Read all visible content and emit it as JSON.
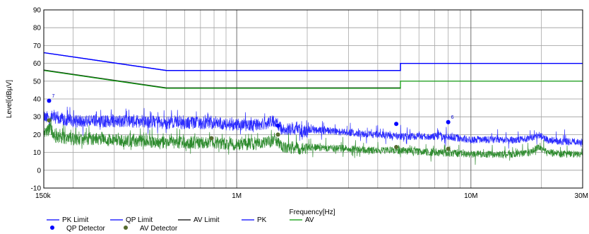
{
  "chart_data": {
    "type": "line",
    "x_scale": "log",
    "xlabel": "Frequency[Hz]",
    "ylabel": "Level[dBµV]",
    "xlim": [
      150000,
      30000000
    ],
    "ylim": [
      -10,
      90
    ],
    "grid": true,
    "legend_position": "bottom",
    "x_tick_labels": [
      {
        "value": 150000,
        "label": "150k"
      },
      {
        "value": 1000000,
        "label": "1M"
      },
      {
        "value": 10000000,
        "label": "10M"
      },
      {
        "value": 30000000,
        "label": "30M"
      }
    ],
    "y_ticks": [
      -10,
      0,
      10,
      20,
      30,
      40,
      50,
      60,
      70,
      80,
      90
    ],
    "limit_lines": [
      {
        "name": "PK Limit",
        "color": "#0000ff",
        "points": [
          [
            150000,
            66
          ],
          [
            500000,
            56
          ],
          [
            5000000,
            56
          ],
          [
            5000000,
            60
          ],
          [
            30000000,
            60
          ]
        ]
      },
      {
        "name": "QP Limit",
        "color": "#0000ff",
        "points": [
          [
            150000,
            66
          ],
          [
            500000,
            56
          ],
          [
            5000000,
            56
          ],
          [
            5000000,
            60
          ],
          [
            30000000,
            60
          ]
        ]
      },
      {
        "name": "AV Limit",
        "color": "#009900",
        "points": [
          [
            150000,
            56
          ],
          [
            500000,
            46
          ],
          [
            5000000,
            46
          ],
          [
            5000000,
            50
          ],
          [
            30000000,
            50
          ]
        ]
      }
    ],
    "series": [
      {
        "name": "PK",
        "color": "#2b2bff",
        "envelope": [
          [
            150000,
            34
          ],
          [
            170000,
            33
          ],
          [
            200000,
            31
          ],
          [
            250000,
            31
          ],
          [
            300000,
            31
          ],
          [
            400000,
            31
          ],
          [
            500000,
            30
          ],
          [
            600000,
            30
          ],
          [
            700000,
            30
          ],
          [
            800000,
            30
          ],
          [
            1000000,
            29
          ],
          [
            1200000,
            29
          ],
          [
            1350000,
            30
          ],
          [
            1450000,
            31
          ],
          [
            1550000,
            27
          ],
          [
            1800000,
            26
          ],
          [
            2000000,
            25
          ],
          [
            2500000,
            24
          ],
          [
            3000000,
            23
          ],
          [
            4000000,
            22
          ],
          [
            5000000,
            21
          ],
          [
            6000000,
            21
          ],
          [
            7000000,
            21
          ],
          [
            8000000,
            21
          ],
          [
            10000000,
            19
          ],
          [
            12000000,
            19
          ],
          [
            15000000,
            19
          ],
          [
            18000000,
            20
          ],
          [
            19500000,
            22
          ],
          [
            21000000,
            19
          ],
          [
            25000000,
            18
          ],
          [
            30000000,
            18
          ]
        ]
      },
      {
        "name": "AV",
        "color": "#2e8b2e",
        "envelope": [
          [
            150000,
            24
          ],
          [
            160000,
            27
          ],
          [
            170000,
            22
          ],
          [
            200000,
            21
          ],
          [
            250000,
            21
          ],
          [
            300000,
            20
          ],
          [
            400000,
            20
          ],
          [
            500000,
            19
          ],
          [
            600000,
            19
          ],
          [
            700000,
            19
          ],
          [
            800000,
            19
          ],
          [
            1000000,
            18
          ],
          [
            1200000,
            18
          ],
          [
            1350000,
            19
          ],
          [
            1450000,
            20
          ],
          [
            1550000,
            17
          ],
          [
            2000000,
            15
          ],
          [
            3000000,
            14
          ],
          [
            4000000,
            13
          ],
          [
            5000000,
            13
          ],
          [
            7000000,
            12
          ],
          [
            10000000,
            11
          ],
          [
            12000000,
            11
          ],
          [
            15000000,
            11
          ],
          [
            18000000,
            12
          ],
          [
            19500000,
            15
          ],
          [
            21000000,
            12
          ],
          [
            25000000,
            11
          ],
          [
            30000000,
            11
          ]
        ]
      }
    ],
    "detector_points": [
      {
        "series": "QP Detector",
        "color": "#0000ff",
        "points": [
          [
            158000,
            39
          ],
          [
            1500000,
            25
          ],
          [
            4800000,
            26
          ],
          [
            8000000,
            27
          ]
        ]
      },
      {
        "series": "AV Detector",
        "color": "#556b2f",
        "points": [
          [
            158000,
            28
          ],
          [
            780000,
            18
          ],
          [
            1500000,
            20
          ],
          [
            4800000,
            13
          ],
          [
            8000000,
            12
          ]
        ]
      }
    ],
    "marker_labels": [
      {
        "x": 158000,
        "y": 40,
        "label": "7"
      },
      {
        "x": 8000000,
        "y": 28,
        "label": "6"
      }
    ],
    "legend": [
      {
        "label": "PK Limit",
        "kind": "line",
        "color": "#0000ff"
      },
      {
        "label": "QP Limit",
        "kind": "line",
        "color": "#0000ff"
      },
      {
        "label": "AV Limit",
        "kind": "line",
        "color": "#000000"
      },
      {
        "label": "PK",
        "kind": "line",
        "color": "#0000ff"
      },
      {
        "label": "AV",
        "kind": "line",
        "color": "#009900"
      },
      {
        "label": "QP Detector",
        "kind": "dot",
        "color": "#0000ff"
      },
      {
        "label": "AV Detector",
        "kind": "dot",
        "color": "#556b2f"
      }
    ]
  }
}
